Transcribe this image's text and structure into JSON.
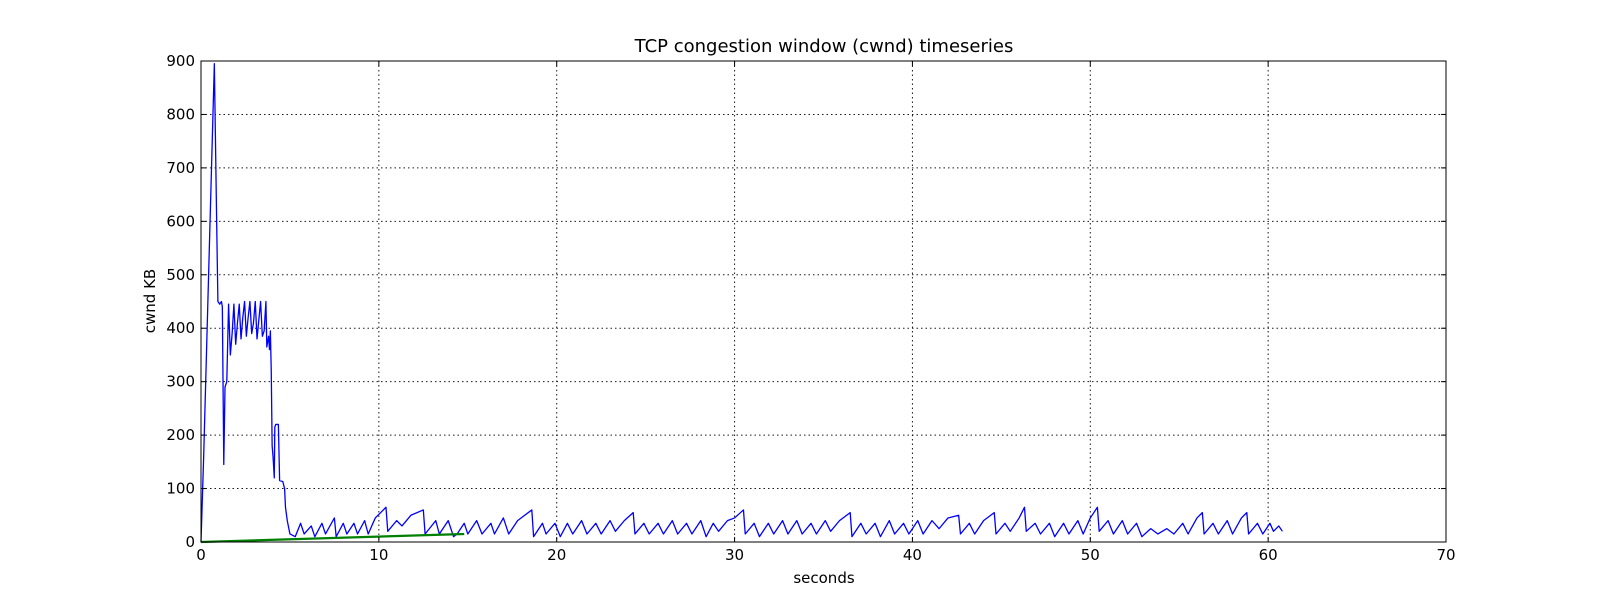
{
  "chart_data": {
    "type": "line",
    "title": "TCP congestion window (cwnd) timeseries",
    "xlabel": "seconds",
    "ylabel": "cwnd KB",
    "xlim": [
      0,
      70
    ],
    "ylim": [
      0,
      900
    ],
    "xticks": [
      0,
      10,
      20,
      30,
      40,
      50,
      60,
      70
    ],
    "yticks": [
      0,
      100,
      200,
      300,
      400,
      500,
      600,
      700,
      800,
      900
    ],
    "grid": true,
    "series": [
      {
        "color": "#0000ff",
        "points": [
          [
            0,
            0
          ],
          [
            0.15,
            160
          ],
          [
            0.75,
            895
          ],
          [
            0.88,
            600
          ],
          [
            0.95,
            450
          ],
          [
            1.05,
            445
          ],
          [
            1.15,
            450
          ],
          [
            1.2,
            440
          ],
          [
            1.28,
            145
          ],
          [
            1.35,
            290
          ],
          [
            1.45,
            300
          ],
          [
            1.55,
            445
          ],
          [
            1.65,
            350
          ],
          [
            1.75,
            390
          ],
          [
            1.85,
            445
          ],
          [
            1.95,
            370
          ],
          [
            2.05,
            410
          ],
          [
            2.15,
            445
          ],
          [
            2.25,
            380
          ],
          [
            2.35,
            420
          ],
          [
            2.45,
            450
          ],
          [
            2.55,
            385
          ],
          [
            2.65,
            420
          ],
          [
            2.75,
            450
          ],
          [
            2.85,
            390
          ],
          [
            2.95,
            410
          ],
          [
            3.05,
            450
          ],
          [
            3.15,
            380
          ],
          [
            3.25,
            415
          ],
          [
            3.35,
            450
          ],
          [
            3.45,
            385
          ],
          [
            3.55,
            395
          ],
          [
            3.65,
            450
          ],
          [
            3.7,
            365
          ],
          [
            3.8,
            385
          ],
          [
            3.85,
            360
          ],
          [
            3.9,
            395
          ],
          [
            3.95,
            320
          ],
          [
            4.0,
            180
          ],
          [
            4.05,
            160
          ],
          [
            4.12,
            120
          ],
          [
            4.15,
            215
          ],
          [
            4.2,
            220
          ],
          [
            4.35,
            220
          ],
          [
            4.42,
            115
          ],
          [
            4.6,
            113
          ],
          [
            4.7,
            100
          ],
          [
            4.75,
            65
          ],
          [
            4.85,
            40
          ],
          [
            5.0,
            15
          ],
          [
            5.3,
            10
          ],
          [
            5.6,
            35
          ],
          [
            5.8,
            15
          ],
          [
            6.2,
            30
          ],
          [
            6.4,
            10
          ],
          [
            6.8,
            35
          ],
          [
            7.0,
            15
          ],
          [
            7.5,
            45
          ],
          [
            7.6,
            10
          ],
          [
            8.0,
            35
          ],
          [
            8.2,
            15
          ],
          [
            8.6,
            35
          ],
          [
            8.8,
            15
          ],
          [
            9.2,
            40
          ],
          [
            9.4,
            15
          ],
          [
            9.8,
            45
          ],
          [
            10.4,
            65
          ],
          [
            10.5,
            20
          ],
          [
            11.0,
            40
          ],
          [
            11.3,
            30
          ],
          [
            11.8,
            50
          ],
          [
            12.5,
            60
          ],
          [
            12.6,
            15
          ],
          [
            13.2,
            40
          ],
          [
            13.4,
            15
          ],
          [
            13.9,
            40
          ],
          [
            14.2,
            10
          ],
          [
            14.4,
            15
          ],
          [
            14.8,
            35
          ],
          [
            15.0,
            15
          ],
          [
            15.5,
            40
          ],
          [
            15.8,
            15
          ],
          [
            16.3,
            35
          ],
          [
            16.5,
            15
          ],
          [
            17.0,
            45
          ],
          [
            17.3,
            15
          ],
          [
            17.8,
            40
          ],
          [
            18.2,
            50
          ],
          [
            18.6,
            60
          ],
          [
            18.7,
            10
          ],
          [
            19.2,
            35
          ],
          [
            19.4,
            15
          ],
          [
            19.9,
            35
          ],
          [
            20.2,
            10
          ],
          [
            20.6,
            35
          ],
          [
            20.9,
            15
          ],
          [
            21.4,
            40
          ],
          [
            21.7,
            15
          ],
          [
            22.2,
            35
          ],
          [
            22.5,
            15
          ],
          [
            23.0,
            40
          ],
          [
            23.3,
            20
          ],
          [
            23.8,
            40
          ],
          [
            24.3,
            55
          ],
          [
            24.4,
            15
          ],
          [
            24.9,
            35
          ],
          [
            25.2,
            15
          ],
          [
            25.7,
            35
          ],
          [
            26.0,
            15
          ],
          [
            26.5,
            40
          ],
          [
            26.8,
            15
          ],
          [
            27.3,
            35
          ],
          [
            27.6,
            15
          ],
          [
            28.1,
            40
          ],
          [
            28.4,
            10
          ],
          [
            28.8,
            35
          ],
          [
            29.1,
            20
          ],
          [
            29.6,
            40
          ],
          [
            30.0,
            45
          ],
          [
            30.5,
            60
          ],
          [
            30.6,
            15
          ],
          [
            31.1,
            35
          ],
          [
            31.4,
            10
          ],
          [
            31.9,
            35
          ],
          [
            32.2,
            15
          ],
          [
            32.7,
            40
          ],
          [
            33.0,
            15
          ],
          [
            33.5,
            40
          ],
          [
            33.8,
            15
          ],
          [
            34.3,
            35
          ],
          [
            34.6,
            15
          ],
          [
            35.1,
            40
          ],
          [
            35.4,
            20
          ],
          [
            35.9,
            40
          ],
          [
            36.5,
            55
          ],
          [
            36.6,
            10
          ],
          [
            37.1,
            35
          ],
          [
            37.4,
            15
          ],
          [
            37.9,
            35
          ],
          [
            38.2,
            10
          ],
          [
            38.7,
            40
          ],
          [
            39.0,
            15
          ],
          [
            39.5,
            35
          ],
          [
            39.8,
            15
          ],
          [
            40.3,
            40
          ],
          [
            40.6,
            15
          ],
          [
            41.1,
            40
          ],
          [
            41.5,
            25
          ],
          [
            42.0,
            45
          ],
          [
            42.6,
            50
          ],
          [
            42.7,
            15
          ],
          [
            43.2,
            35
          ],
          [
            43.5,
            15
          ],
          [
            44.0,
            40
          ],
          [
            44.6,
            55
          ],
          [
            44.7,
            15
          ],
          [
            45.2,
            35
          ],
          [
            45.5,
            20
          ],
          [
            46.0,
            45
          ],
          [
            46.3,
            65
          ],
          [
            46.4,
            20
          ],
          [
            46.9,
            35
          ],
          [
            47.2,
            15
          ],
          [
            47.7,
            35
          ],
          [
            48.0,
            10
          ],
          [
            48.5,
            35
          ],
          [
            48.8,
            15
          ],
          [
            49.3,
            40
          ],
          [
            49.6,
            15
          ],
          [
            50.0,
            45
          ],
          [
            50.4,
            65
          ],
          [
            50.5,
            20
          ],
          [
            51.0,
            40
          ],
          [
            51.3,
            15
          ],
          [
            51.8,
            40
          ],
          [
            52.1,
            15
          ],
          [
            52.6,
            35
          ],
          [
            52.9,
            10
          ],
          [
            53.4,
            25
          ],
          [
            53.8,
            15
          ],
          [
            54.3,
            25
          ],
          [
            54.7,
            15
          ],
          [
            55.2,
            35
          ],
          [
            55.5,
            15
          ],
          [
            56.0,
            45
          ],
          [
            56.3,
            55
          ],
          [
            56.4,
            15
          ],
          [
            56.9,
            35
          ],
          [
            57.2,
            15
          ],
          [
            57.7,
            40
          ],
          [
            58.0,
            15
          ],
          [
            58.5,
            45
          ],
          [
            58.8,
            55
          ],
          [
            58.9,
            15
          ],
          [
            59.4,
            35
          ],
          [
            59.7,
            15
          ],
          [
            60.1,
            35
          ],
          [
            60.3,
            20
          ],
          [
            60.6,
            30
          ],
          [
            60.8,
            20
          ]
        ]
      },
      {
        "color": "#008000",
        "points": [
          [
            0,
            0
          ],
          [
            14.8,
            15
          ]
        ]
      }
    ]
  }
}
